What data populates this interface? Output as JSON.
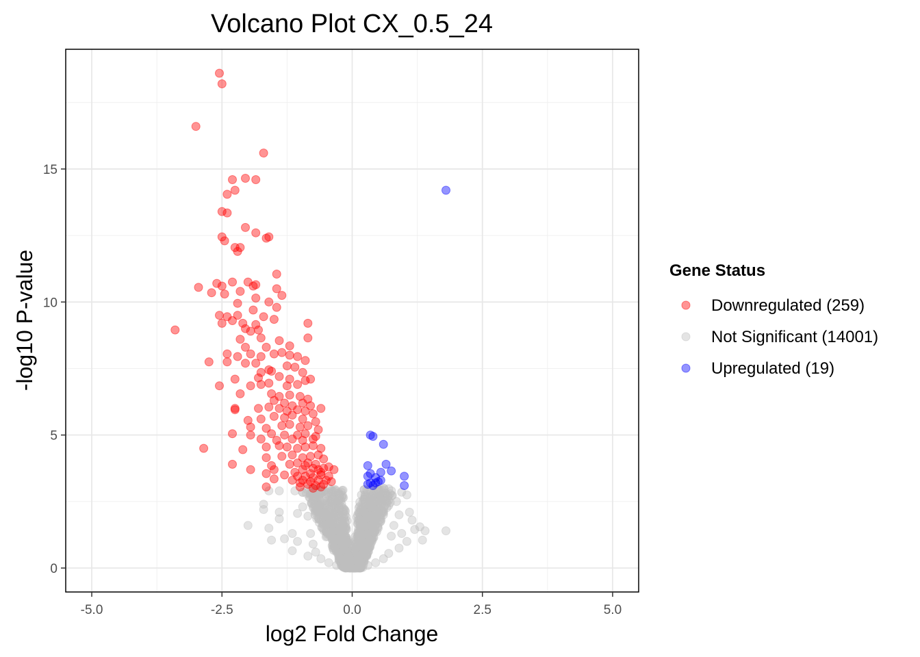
{
  "chart_data": {
    "type": "scatter",
    "title": "Volcano Plot CX_0.5_24",
    "xlabel": "log2 Fold Change",
    "ylabel": "-log10 P-value",
    "xlim": [
      -5.5,
      5.5
    ],
    "ylim": [
      -0.9,
      19.5
    ],
    "x_ticks": [
      -5.0,
      -2.5,
      0.0,
      2.5,
      5.0
    ],
    "x_tick_labels": [
      "-5.0",
      "-2.5",
      "0.0",
      "2.5",
      "5.0"
    ],
    "y_ticks": [
      0,
      5,
      10,
      15
    ],
    "y_tick_labels": [
      "0",
      "5",
      "10",
      "15"
    ],
    "grid": true,
    "legend": {
      "title": "Gene Status",
      "placement": "right",
      "entries": [
        "Downregulated (259)",
        "Not Significant (14001)",
        "Upregulated (19)"
      ]
    },
    "series": [
      {
        "name": "Downregulated (259)",
        "color": "#ff0000",
        "points": [
          [
            -2.55,
            18.6
          ],
          [
            -2.5,
            18.2
          ],
          [
            -3.0,
            16.6
          ],
          [
            -1.7,
            15.6
          ],
          [
            -2.05,
            14.65
          ],
          [
            -2.3,
            14.6
          ],
          [
            -1.85,
            14.6
          ],
          [
            -2.25,
            14.2
          ],
          [
            -2.4,
            14.05
          ],
          [
            -2.5,
            13.4
          ],
          [
            -2.4,
            13.35
          ],
          [
            -2.05,
            12.8
          ],
          [
            -1.85,
            12.6
          ],
          [
            -1.6,
            12.45
          ],
          [
            -1.65,
            12.4
          ],
          [
            -2.5,
            12.45
          ],
          [
            -2.45,
            12.3
          ],
          [
            -2.25,
            12.05
          ],
          [
            -2.2,
            11.9
          ],
          [
            -2.15,
            12.05
          ],
          [
            -1.45,
            11.05
          ],
          [
            -2.95,
            10.55
          ],
          [
            -2.6,
            10.7
          ],
          [
            -2.5,
            10.6
          ],
          [
            -2.3,
            10.75
          ],
          [
            -2.0,
            10.75
          ],
          [
            -1.9,
            10.6
          ],
          [
            -1.85,
            10.65
          ],
          [
            -1.45,
            10.5
          ],
          [
            -1.35,
            10.25
          ],
          [
            -2.7,
            10.35
          ],
          [
            -2.45,
            10.3
          ],
          [
            -2.15,
            10.4
          ],
          [
            -2.2,
            9.95
          ],
          [
            -1.85,
            10.15
          ],
          [
            -1.6,
            10.0
          ],
          [
            -1.9,
            9.7
          ],
          [
            -1.45,
            9.8
          ],
          [
            -3.4,
            8.95
          ],
          [
            -2.55,
            9.5
          ],
          [
            -2.4,
            9.45
          ],
          [
            -2.2,
            9.5
          ],
          [
            -2.1,
            9.2
          ],
          [
            -1.85,
            9.15
          ],
          [
            -1.7,
            9.45
          ],
          [
            -1.5,
            9.35
          ],
          [
            -0.85,
            9.2
          ],
          [
            -2.5,
            9.2
          ],
          [
            -2.3,
            9.3
          ],
          [
            -2.05,
            9.0
          ],
          [
            -1.95,
            8.9
          ],
          [
            -1.8,
            8.95
          ],
          [
            -2.15,
            8.6
          ],
          [
            -1.75,
            8.65
          ],
          [
            -0.85,
            8.65
          ],
          [
            -1.4,
            8.55
          ],
          [
            -1.2,
            8.35
          ],
          [
            -2.05,
            8.3
          ],
          [
            -1.65,
            8.3
          ],
          [
            -2.4,
            8.05
          ],
          [
            -2.2,
            7.95
          ],
          [
            -1.95,
            8.05
          ],
          [
            -1.75,
            7.95
          ],
          [
            -1.5,
            8.05
          ],
          [
            -1.35,
            8.1
          ],
          [
            -1.2,
            8.0
          ],
          [
            -1.05,
            7.95
          ],
          [
            -0.9,
            7.8
          ],
          [
            -2.75,
            7.75
          ],
          [
            -2.4,
            7.75
          ],
          [
            -2.05,
            7.7
          ],
          [
            -1.85,
            7.7
          ],
          [
            -1.6,
            7.45
          ],
          [
            -1.25,
            7.6
          ],
          [
            -1.1,
            7.55
          ],
          [
            -0.95,
            7.35
          ],
          [
            -1.75,
            7.35
          ],
          [
            -1.55,
            7.4
          ],
          [
            -2.25,
            7.1
          ],
          [
            -1.8,
            7.15
          ],
          [
            -1.4,
            7.2
          ],
          [
            -1.2,
            7.1
          ],
          [
            -0.8,
            7.1
          ],
          [
            -0.9,
            7.05
          ],
          [
            -1.95,
            6.85
          ],
          [
            -1.75,
            6.9
          ],
          [
            -1.6,
            6.95
          ],
          [
            -1.25,
            6.85
          ],
          [
            -1.05,
            6.9
          ],
          [
            -2.55,
            6.85
          ],
          [
            -2.15,
            6.55
          ],
          [
            -1.55,
            6.55
          ],
          [
            -1.4,
            6.45
          ],
          [
            -1.2,
            6.5
          ],
          [
            -1.0,
            6.45
          ],
          [
            -0.85,
            6.35
          ],
          [
            -0.8,
            6.1
          ],
          [
            -1.5,
            6.3
          ],
          [
            -1.3,
            6.2
          ],
          [
            -1.15,
            6.1
          ],
          [
            -0.95,
            6.2
          ],
          [
            -2.25,
            6.0
          ],
          [
            -1.8,
            6.0
          ],
          [
            -1.6,
            6.05
          ],
          [
            -1.4,
            6.0
          ],
          [
            -1.25,
            5.9
          ],
          [
            -1.05,
            5.95
          ],
          [
            -0.9,
            5.9
          ],
          [
            -0.6,
            6.0
          ],
          [
            -2.25,
            5.95
          ],
          [
            -2.0,
            5.55
          ],
          [
            -1.75,
            5.6
          ],
          [
            -1.5,
            5.7
          ],
          [
            -1.3,
            5.65
          ],
          [
            -1.15,
            5.75
          ],
          [
            -0.95,
            5.6
          ],
          [
            -0.75,
            5.8
          ],
          [
            -0.7,
            5.5
          ],
          [
            -1.95,
            5.3
          ],
          [
            -1.65,
            5.25
          ],
          [
            -1.35,
            5.35
          ],
          [
            -1.2,
            5.4
          ],
          [
            -1.0,
            5.3
          ],
          [
            -0.85,
            5.35
          ],
          [
            -0.65,
            5.2
          ],
          [
            -2.3,
            5.05
          ],
          [
            -1.95,
            5.0
          ],
          [
            -1.55,
            5.05
          ],
          [
            -1.3,
            5.0
          ],
          [
            -1.05,
            5.0
          ],
          [
            -0.9,
            5.05
          ],
          [
            -0.7,
            4.95
          ],
          [
            -1.75,
            4.85
          ],
          [
            -1.45,
            4.8
          ],
          [
            -1.15,
            4.85
          ],
          [
            -0.95,
            4.8
          ],
          [
            -0.75,
            4.85
          ],
          [
            -2.85,
            4.5
          ],
          [
            -2.1,
            4.45
          ],
          [
            -1.65,
            4.55
          ],
          [
            -1.4,
            4.6
          ],
          [
            -1.25,
            4.55
          ],
          [
            -1.05,
            4.5
          ],
          [
            -0.9,
            4.55
          ],
          [
            -0.75,
            4.6
          ],
          [
            -0.6,
            4.5
          ],
          [
            -1.65,
            4.15
          ],
          [
            -1.35,
            4.2
          ],
          [
            -1.15,
            4.25
          ],
          [
            -0.95,
            4.15
          ],
          [
            -0.8,
            4.2
          ],
          [
            -0.65,
            4.25
          ],
          [
            -0.55,
            4.1
          ],
          [
            -2.3,
            3.9
          ],
          [
            -1.55,
            3.85
          ],
          [
            -1.2,
            3.9
          ],
          [
            -1.05,
            3.95
          ],
          [
            -0.9,
            3.85
          ],
          [
            -0.7,
            3.9
          ],
          [
            -0.55,
            3.75
          ],
          [
            -0.45,
            3.8
          ],
          [
            -1.95,
            3.7
          ],
          [
            -1.5,
            3.7
          ],
          [
            -1.1,
            3.6
          ],
          [
            -0.95,
            3.7
          ],
          [
            -0.8,
            3.55
          ],
          [
            -0.65,
            3.7
          ],
          [
            -0.35,
            3.7
          ],
          [
            -1.65,
            3.55
          ],
          [
            -1.3,
            3.5
          ],
          [
            -1.05,
            3.45
          ],
          [
            -0.9,
            3.45
          ],
          [
            -0.75,
            3.4
          ],
          [
            -0.6,
            3.5
          ],
          [
            -0.45,
            3.45
          ],
          [
            -1.5,
            3.35
          ],
          [
            -1.15,
            3.3
          ],
          [
            -0.95,
            3.3
          ],
          [
            -0.8,
            3.25
          ],
          [
            -0.65,
            3.3
          ],
          [
            -0.5,
            3.3
          ],
          [
            -0.4,
            3.25
          ],
          [
            -1.0,
            3.2
          ],
          [
            -0.85,
            3.15
          ],
          [
            -0.7,
            3.1
          ],
          [
            -0.55,
            3.15
          ],
          [
            -1.65,
            3.05
          ],
          [
            -0.75,
            3.0
          ],
          [
            -0.6,
            3.05
          ],
          [
            -0.85,
            3.95
          ],
          [
            -0.75,
            3.75
          ],
          [
            -0.6,
            3.6
          ],
          [
            -1.0,
            3.05
          ]
        ]
      },
      {
        "name": "Not Significant (14001)",
        "color": "#bebebe",
        "points": [
          [
            -1.6,
            2.9
          ],
          [
            -1.4,
            2.9
          ],
          [
            -1.1,
            2.9
          ],
          [
            -0.95,
            2.85
          ],
          [
            -0.8,
            2.75
          ],
          [
            -1.7,
            2.4
          ],
          [
            -1.7,
            2.2
          ],
          [
            -1.4,
            2.1
          ],
          [
            -1.4,
            1.85
          ],
          [
            -1.05,
            2.05
          ],
          [
            -0.95,
            2.3
          ],
          [
            -0.85,
            1.95
          ],
          [
            -1.6,
            1.5
          ],
          [
            -2.0,
            1.6
          ],
          [
            -1.3,
            1.1
          ],
          [
            -1.55,
            1.05
          ],
          [
            -1.15,
            1.3
          ],
          [
            -1.05,
            1.0
          ],
          [
            -1.15,
            0.65
          ],
          [
            -0.8,
            1.3
          ],
          [
            -0.75,
            0.9
          ],
          [
            -0.7,
            0.6
          ],
          [
            -0.85,
            0.45
          ],
          [
            -0.6,
            0.35
          ],
          [
            -0.45,
            0.2
          ],
          [
            0.5,
            2.5
          ],
          [
            0.7,
            2.35
          ],
          [
            0.85,
            2.5
          ],
          [
            0.95,
            2.85
          ],
          [
            1.05,
            2.75
          ],
          [
            0.9,
            2.0
          ],
          [
            1.1,
            2.1
          ],
          [
            1.15,
            1.8
          ],
          [
            0.8,
            1.6
          ],
          [
            1.2,
            1.45
          ],
          [
            1.3,
            1.55
          ],
          [
            1.4,
            1.4
          ],
          [
            1.35,
            1.05
          ],
          [
            1.8,
            1.4
          ],
          [
            1.05,
            1.0
          ],
          [
            0.9,
            0.75
          ],
          [
            0.7,
            0.55
          ],
          [
            0.6,
            0.35
          ],
          [
            0.45,
            0.2
          ],
          [
            0.3,
            0.1
          ],
          [
            -0.3,
            0.1
          ],
          [
            0.15,
            0.05
          ],
          [
            -0.15,
            0.05
          ],
          [
            0.0,
            0.0
          ],
          [
            0.6,
            2.0
          ],
          [
            0.75,
            1.2
          ],
          [
            0.95,
            1.3
          ],
          [
            0.5,
            1.5
          ]
        ],
        "dense_region": {
          "description": "cluster of non-significant genes",
          "x_range": [
            -1.0,
            1.2
          ],
          "y_range": [
            0,
            3.0
          ]
        }
      },
      {
        "name": "Upregulated (19)",
        "color": "#0000ff",
        "points": [
          [
            1.8,
            14.2
          ],
          [
            0.35,
            5.0
          ],
          [
            0.4,
            4.95
          ],
          [
            0.6,
            4.65
          ],
          [
            0.3,
            3.85
          ],
          [
            0.65,
            3.9
          ],
          [
            0.55,
            3.6
          ],
          [
            0.75,
            3.65
          ],
          [
            0.3,
            3.45
          ],
          [
            0.35,
            3.55
          ],
          [
            0.45,
            3.4
          ],
          [
            1.0,
            3.45
          ],
          [
            0.55,
            3.3
          ],
          [
            0.35,
            3.2
          ],
          [
            0.45,
            3.2
          ],
          [
            0.3,
            3.15
          ],
          [
            0.4,
            3.1
          ],
          [
            0.5,
            3.25
          ],
          [
            1.0,
            3.1
          ]
        ]
      }
    ]
  }
}
